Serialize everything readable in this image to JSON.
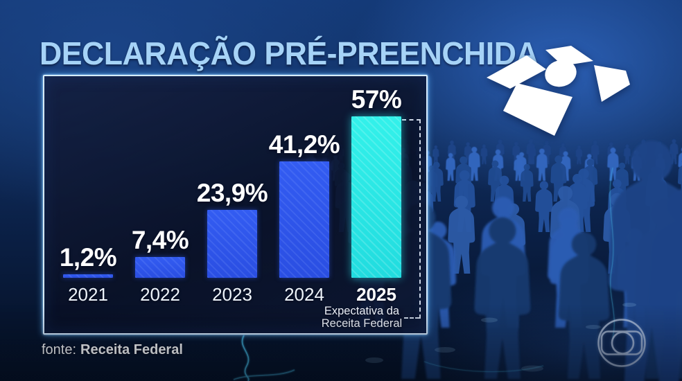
{
  "title": "DECLARAÇÃO PRÉ-PREENCHIDA",
  "chart_data": {
    "type": "bar",
    "title": "DECLARAÇÃO PRÉ-PREENCHIDA",
    "categories": [
      "2021",
      "2022",
      "2023",
      "2024",
      "2025"
    ],
    "values": [
      1.2,
      7.4,
      23.9,
      41.2,
      57
    ],
    "value_labels": [
      "1,2%",
      "7,4%",
      "23,9%",
      "41,2%",
      "57%"
    ],
    "unit": "%",
    "ylim": [
      0,
      60
    ],
    "grid": false,
    "legend_position": "none",
    "bar_color": "#2e55e8",
    "highlight_index": 4,
    "highlight_bar_color": "#29e7e4",
    "highlight_note_lines": [
      "Expectativa da",
      "Receita Federal"
    ]
  },
  "source": {
    "prefix_label": "fonte:",
    "name": "Receita Federal"
  },
  "branding": {
    "top_right_logo": "receita-federal-logo",
    "bottom_right_logo": "globo-logo"
  },
  "colors": {
    "title_text": "#a6d3f7",
    "panel_border": "#d6ecff",
    "value_label": "#ffffff",
    "year_label": "#eef4fb",
    "dashed_guide": "#dfe9f7",
    "background_accent": "#2d62b9"
  }
}
